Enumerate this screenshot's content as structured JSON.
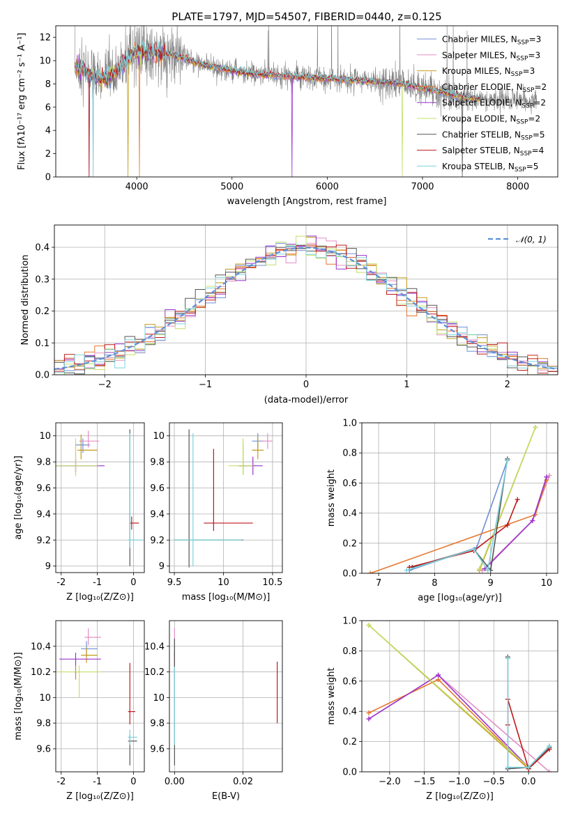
{
  "title": "PLATE=1797, MJD=54507, FIBERID=0440, z=0.125",
  "colors": {
    "Chabrier MILES": "#6f8fd6",
    "Salpeter MILES": "#e38fc4",
    "Kroupa MILES": "#c49a1a",
    "Chabrier ELODIE": "#e6772e",
    "Salpeter ELODIE": "#9933cc",
    "Kroupa ELODIE": "#c2e06a",
    "Chabrier STELIB": "#555555",
    "Salpeter STELIB": "#c01818",
    "Kroupa STELIB": "#7ed3dd",
    "normal": "#5b8fd8",
    "data": "#808080"
  },
  "chart_data": [
    {
      "id": "spectrum",
      "type": "line",
      "title": "PLATE=1797, MJD=54507, FIBERID=0440, z=0.125",
      "xlabel": "wavelength [Angstrom, rest frame]",
      "ylabel": "Flux [fλ10⁻¹⁷ erg cm⁻² s⁻¹ A⁻¹]",
      "xlim": [
        3150,
        8420
      ],
      "ylim": [
        0,
        13
      ],
      "xticks": [
        "4000",
        "5000",
        "6000",
        "7000",
        "8000"
      ],
      "yticks": [
        "0",
        "2",
        "4",
        "6",
        "8",
        "10",
        "12"
      ],
      "legend": [
        {
          "label": "Chabrier MILES, N",
          "sub": "SSP",
          "n": "=3"
        },
        {
          "label": "Salpeter MILES, N",
          "sub": "SSP",
          "n": "=3"
        },
        {
          "label": "Kroupa MILES, N",
          "sub": "SSP",
          "n": "=3"
        },
        {
          "label": "Chabrier ELODIE, N",
          "sub": "SSP",
          "n": "=2"
        },
        {
          "label": "Salpeter ELODIE, N",
          "sub": "SSP",
          "n": "=2"
        },
        {
          "label": "Kroupa ELODIE, N",
          "sub": "SSP",
          "n": "=2"
        },
        {
          "label": "Chabrier STELIB, N",
          "sub": "SSP",
          "n": "=5"
        },
        {
          "label": "Salpeter STELIB, N",
          "sub": "SSP",
          "n": "=4"
        },
        {
          "label": "Kroupa STELIB, N",
          "sub": "SSP",
          "n": "=5"
        }
      ],
      "legend_placement": "upper right",
      "continuum": [
        [
          3350,
          9.5
        ],
        [
          3450,
          9.2
        ],
        [
          3550,
          8.6
        ],
        [
          3650,
          8.4
        ],
        [
          3750,
          8.8
        ],
        [
          3850,
          9.6
        ],
        [
          3950,
          10.6
        ],
        [
          4050,
          10.8
        ],
        [
          4150,
          10.7
        ],
        [
          4300,
          10.6
        ],
        [
          4500,
          10.2
        ],
        [
          4700,
          9.6
        ],
        [
          4900,
          9.3
        ],
        [
          5100,
          9.0
        ],
        [
          5300,
          8.8
        ],
        [
          5500,
          8.7
        ],
        [
          5700,
          8.6
        ],
        [
          5900,
          8.5
        ],
        [
          6100,
          8.4
        ],
        [
          6300,
          8.3
        ],
        [
          6500,
          8.2
        ],
        [
          6700,
          8.1
        ],
        [
          6900,
          7.8
        ],
        [
          7100,
          7.5
        ],
        [
          7300,
          7.1
        ],
        [
          7500,
          6.8
        ],
        [
          7600,
          6.7
        ]
      ],
      "data_range": [
        3350,
        8200
      ],
      "deep_lines": [
        3500,
        3540,
        3910,
        4030,
        5630,
        6790,
        7420
      ]
    },
    {
      "id": "residuals",
      "type": "histogram",
      "xlabel": "(data-model)/error",
      "ylabel": "Normed distribution",
      "xlim": [
        -2.5,
        2.5
      ],
      "ylim": [
        0,
        0.47
      ],
      "xticks": [
        "−2",
        "−1",
        "0",
        "1",
        "2"
      ],
      "yticks": [
        "0.0",
        "0.1",
        "0.2",
        "0.3",
        "0.4"
      ],
      "bin_width": 0.1,
      "grid": true,
      "legend": "𝒩(0, 1)",
      "legend_placement": "upper right"
    },
    {
      "id": "age_vs_Z",
      "type": "errorbar",
      "xlabel": "Z [log₁₀(Z/Z⊙)]",
      "ylabel": "age  [log₁₀(age/yr)]",
      "xlim": [
        -2.15,
        0.3
      ],
      "ylim": [
        8.95,
        10.1
      ],
      "xticks": [
        -2,
        -1,
        0
      ],
      "yticks": [
        9.0,
        9.2,
        9.4,
        9.6,
        9.8,
        10.0
      ],
      "points": [
        {
          "m": "Chabrier MILES",
          "x": -1.4,
          "xe": [
            0.2,
            0.2
          ],
          "y": 9.93,
          "ye": [
            0.06,
            0.05
          ]
        },
        {
          "m": "Salpeter MILES",
          "x": -1.25,
          "xe": [
            0.25,
            0.3
          ],
          "y": 9.96,
          "ye": [
            0.05,
            0.08
          ]
        },
        {
          "m": "Kroupa MILES",
          "x": -1.45,
          "xe": [
            0.1,
            0.45
          ],
          "y": 9.89,
          "ye": [
            0.07,
            0.12
          ]
        },
        {
          "m": "Chabrier ELODIE",
          "x": -1.6,
          "xe": [
            0.05,
            0.05
          ],
          "y": 9.77,
          "ye": [
            0.05,
            0.17
          ]
        },
        {
          "m": "Salpeter ELODIE",
          "x": -1.6,
          "xe": [
            0.55,
            0.8
          ],
          "y": 9.77,
          "ye": [
            0.05,
            0.05
          ]
        },
        {
          "m": "Kroupa ELODIE",
          "x": -1.6,
          "xe": [
            0.55,
            0.6
          ],
          "y": 9.77,
          "ye": [
            0.08,
            0.21
          ]
        },
        {
          "m": "Chabrier STELIB",
          "x": -0.1,
          "xe": [
            0.02,
            0.02
          ],
          "y": 9.2,
          "ye": [
            0.2,
            0.85
          ]
        },
        {
          "m": "Salpeter STELIB",
          "x": -0.05,
          "xe": [
            0.05,
            0.2
          ],
          "y": 9.33,
          "ye": [
            0.05,
            0.05
          ]
        },
        {
          "m": "Kroupa STELIB",
          "x": -0.1,
          "xe": [
            0.05,
            0.35
          ],
          "y": 9.2,
          "ye": [
            0.06,
            0.82
          ]
        }
      ]
    },
    {
      "id": "age_vs_mass",
      "type": "errorbar",
      "xlabel": "mass [log₁₀(M/M⊙)]",
      "ylabel": "",
      "xlim": [
        9.45,
        10.6
      ],
      "ylim": [
        8.95,
        10.1
      ],
      "xticks": [
        9.5,
        10.0,
        10.5
      ],
      "yticks": [
        9.0,
        9.2,
        9.4,
        9.6,
        9.8,
        10.0
      ],
      "points": [
        {
          "m": "Chabrier MILES",
          "x": 10.35,
          "xe": [
            0.06,
            0.06
          ],
          "y": 9.96,
          "ye": [
            0.06,
            0.06
          ]
        },
        {
          "m": "Salpeter MILES",
          "x": 10.45,
          "xe": [
            0.06,
            0.05
          ],
          "y": 9.96,
          "ye": [
            0.06,
            0.06
          ]
        },
        {
          "m": "Kroupa MILES",
          "x": 10.35,
          "xe": [
            0.06,
            0.06
          ],
          "y": 9.89,
          "ye": [
            0.07,
            0.1
          ]
        },
        {
          "m": "Chabrier ELODIE",
          "x": 10.2,
          "xe": [
            0.03,
            0.03
          ],
          "y": 9.77,
          "ye": [
            0.07,
            0.17
          ]
        },
        {
          "m": "Salpeter ELODIE",
          "x": 10.3,
          "xe": [
            0.15,
            0.1
          ],
          "y": 9.77,
          "ye": [
            0.07,
            0.07
          ]
        },
        {
          "m": "Kroupa ELODIE",
          "x": 10.2,
          "xe": [
            0.15,
            0.1
          ],
          "y": 9.77,
          "ye": [
            0.07,
            0.21
          ]
        },
        {
          "m": "Chabrier STELIB",
          "x": 9.65,
          "xe": [
            0.15,
            0.55
          ],
          "y": 9.2,
          "ye": [
            0.21,
            0.85
          ]
        },
        {
          "m": "Salpeter STELIB",
          "x": 9.9,
          "xe": [
            0.1,
            0.4
          ],
          "y": 9.33,
          "ye": [
            0.06,
            0.57
          ]
        },
        {
          "m": "Kroupa STELIB",
          "x": 9.69,
          "xe": [
            0.2,
            0.5
          ],
          "y": 9.2,
          "ye": [
            0.2,
            0.82
          ]
        }
      ]
    },
    {
      "id": "weight_vs_age",
      "type": "line",
      "xlabel": "age  [log₁₀(age/yr)]",
      "ylabel": "mass weight",
      "xlim": [
        6.7,
        10.2
      ],
      "ylim": [
        0,
        1
      ],
      "xticks": [
        7,
        8,
        9,
        10
      ],
      "yticks": [
        "0.0",
        "0.2",
        "0.4",
        "0.6",
        "0.8",
        "1.0"
      ],
      "series": [
        {
          "m": "Chabrier MILES",
          "pts": [
            [
              7.55,
              0.02
            ],
            [
              8.75,
              0.17
            ],
            [
              9.3,
              0.75
            ]
          ]
        },
        {
          "m": "Salpeter MILES",
          "pts": [
            [
              8.85,
              0.02
            ],
            [
              9.75,
              0.35
            ],
            [
              10.05,
              0.65
            ]
          ]
        },
        {
          "m": "Kroupa MILES",
          "pts": [
            [
              8.8,
              0.02
            ],
            [
              9.8,
              0.97
            ]
          ]
        },
        {
          "m": "Chabrier ELODIE",
          "pts": [
            [
              6.85,
              0.0
            ],
            [
              9.8,
              0.39
            ],
            [
              10.0,
              0.62
            ]
          ]
        },
        {
          "m": "Salpeter ELODIE",
          "pts": [
            [
              8.9,
              0.03
            ],
            [
              9.75,
              0.35
            ],
            [
              10.0,
              0.64
            ]
          ]
        },
        {
          "m": "Kroupa ELODIE",
          "pts": [
            [
              8.8,
              0.03
            ],
            [
              9.8,
              0.97
            ]
          ]
        },
        {
          "m": "Chabrier STELIB",
          "pts": [
            [
              7.6,
              0.04
            ],
            [
              8.7,
              0.16
            ],
            [
              9.0,
              0.02
            ],
            [
              9.3,
              0.76
            ]
          ]
        },
        {
          "m": "Salpeter STELIB",
          "pts": [
            [
              7.55,
              0.04
            ],
            [
              8.7,
              0.15
            ],
            [
              9.3,
              0.32
            ],
            [
              9.48,
              0.49
            ]
          ]
        },
        {
          "m": "Kroupa STELIB",
          "pts": [
            [
              7.5,
              0.02
            ],
            [
              8.7,
              0.16
            ],
            [
              8.95,
              0.02
            ],
            [
              9.3,
              0.75
            ]
          ]
        }
      ]
    },
    {
      "id": "mass_vs_Z",
      "type": "errorbar",
      "xlabel": "Z [log₁₀(Z/Z⊙)]",
      "ylabel": "mass [log₁₀(M/M⊙)]",
      "xlim": [
        -2.15,
        0.3
      ],
      "ylim": [
        9.42,
        10.6
      ],
      "xticks": [
        -2,
        -1,
        0
      ],
      "yticks": [
        9.6,
        9.8,
        10.0,
        10.2,
        10.4
      ],
      "points": [
        {
          "m": "Chabrier MILES",
          "x": -1.3,
          "xe": [
            0.15,
            0.3
          ],
          "y": 10.38,
          "ye": [
            0.06,
            0.06
          ]
        },
        {
          "m": "Salpeter MILES",
          "x": -1.25,
          "xe": [
            0.1,
            0.35
          ],
          "y": 10.47,
          "ye": [
            0.06,
            0.07
          ]
        },
        {
          "m": "Kroupa MILES",
          "x": -1.3,
          "xe": [
            0.15,
            0.3
          ],
          "y": 10.33,
          "ye": [
            0.06,
            0.06
          ]
        },
        {
          "m": "Chabrier ELODIE",
          "x": -1.6,
          "xe": [
            0.05,
            0.05
          ],
          "y": 10.2,
          "ye": [
            0.06,
            0.05
          ]
        },
        {
          "m": "Salpeter ELODIE",
          "x": -1.6,
          "xe": [
            0.45,
            0.7
          ],
          "y": 10.3,
          "ye": [
            0.05,
            0.05
          ]
        },
        {
          "m": "Kroupa ELODIE",
          "x": -1.5,
          "xe": [
            0.6,
            0.6
          ],
          "y": 10.2,
          "ye": [
            0.2,
            0.05
          ]
        },
        {
          "m": "Chabrier STELIB",
          "x": -0.1,
          "xe": [
            0.05,
            0.2
          ],
          "y": 9.66,
          "ye": [
            0.19,
            0.05
          ]
        },
        {
          "m": "Salpeter STELIB",
          "x": -0.1,
          "xe": [
            0.05,
            0.15
          ],
          "y": 9.89,
          "ye": [
            0.1,
            0.38
          ]
        },
        {
          "m": "Kroupa STELIB",
          "x": -0.1,
          "xe": [
            0.05,
            0.2
          ],
          "y": 9.69,
          "ye": [
            0.06,
            0.06
          ]
        }
      ]
    },
    {
      "id": "mass_vs_ebv",
      "type": "errorbar",
      "xlabel": "E(B-V)",
      "ylabel": "",
      "xlim": [
        -0.0015,
        0.0315
      ],
      "ylim": [
        9.42,
        10.6
      ],
      "xticks": [
        "0.00",
        "0.02"
      ],
      "yticks": [
        9.6,
        9.8,
        10.0,
        10.2,
        10.4
      ],
      "points": [
        {
          "m": "Chabrier MILES",
          "x": 0.0,
          "y": 10.38,
          "ye": [
            0.06,
            0.06
          ]
        },
        {
          "m": "Salpeter MILES",
          "x": 0.0,
          "y": 10.47,
          "ye": [
            0.06,
            0.07
          ]
        },
        {
          "m": "Kroupa MILES",
          "x": 0.0,
          "y": 10.33,
          "ye": [
            0.06,
            0.06
          ]
        },
        {
          "m": "Chabrier ELODIE",
          "x": 0.0,
          "y": 10.2,
          "ye": [
            0.06,
            0.05
          ]
        },
        {
          "m": "Salpeter ELODIE",
          "x": 0.0,
          "y": 10.3,
          "ye": [
            0.05,
            0.05
          ]
        },
        {
          "m": "Kroupa ELODIE",
          "x": 0.0,
          "y": 10.2,
          "ye": [
            0.2,
            0.05
          ]
        },
        {
          "m": "Chabrier STELIB",
          "x": 0.0,
          "y": 9.66,
          "ye": [
            0.19,
            0.8
          ]
        },
        {
          "m": "Salpeter STELIB",
          "x": 0.03,
          "y": 10.05,
          "ye": [
            0.25,
            0.23
          ]
        },
        {
          "m": "Kroupa STELIB",
          "x": 0.0,
          "y": 9.69,
          "ye": [
            0.06,
            0.55
          ]
        }
      ]
    },
    {
      "id": "weight_vs_Z",
      "type": "line",
      "xlabel": "Z [log₁₀(Z/Z⊙)]",
      "ylabel": "mass weight",
      "xlim": [
        -2.4,
        0.42
      ],
      "ylim": [
        0,
        1
      ],
      "xticks": [
        "−2.0",
        "−1.5",
        "−1.0",
        "−0.5",
        "0.0"
      ],
      "xtickvals": [
        -2.0,
        -1.5,
        -1.0,
        -0.5,
        0.0
      ],
      "yticks": [
        "0.0",
        "0.2",
        "0.4",
        "0.6",
        "0.8",
        "1.0"
      ],
      "series": [
        {
          "m": "Chabrier MILES",
          "pts": [
            [
              -0.3,
              0.75
            ],
            [
              -0.3,
              0.02
            ],
            [
              0.0,
              0.03
            ],
            [
              0.3,
              0.17
            ]
          ]
        },
        {
          "m": "Salpeter MILES",
          "pts": [
            [
              -2.3,
              0.35
            ],
            [
              -1.3,
              0.64
            ],
            [
              0.3,
              0.0
            ]
          ]
        },
        {
          "m": "Kroupa MILES",
          "pts": [
            [
              -2.3,
              0.97
            ],
            [
              0.0,
              0.02
            ]
          ]
        },
        {
          "m": "Chabrier ELODIE",
          "pts": [
            [
              -2.3,
              0.39
            ],
            [
              -1.3,
              0.61
            ],
            [
              0.0,
              0.02
            ]
          ]
        },
        {
          "m": "Salpeter ELODIE",
          "pts": [
            [
              -2.3,
              0.35
            ],
            [
              -1.3,
              0.64
            ],
            [
              0.0,
              0.03
            ]
          ]
        },
        {
          "m": "Kroupa ELODIE",
          "pts": [
            [
              -2.3,
              0.97
            ],
            [
              0.0,
              0.03
            ]
          ]
        },
        {
          "m": "Chabrier STELIB",
          "pts": [
            [
              -0.3,
              0.76
            ],
            [
              -0.3,
              0.02
            ],
            [
              0.0,
              0.03
            ],
            [
              0.3,
              0.16
            ]
          ]
        },
        {
          "m": "Salpeter STELIB",
          "pts": [
            [
              -0.3,
              0.31
            ],
            [
              -0.3,
              0.48
            ],
            [
              0.0,
              0.02
            ],
            [
              0.3,
              0.15
            ]
          ]
        },
        {
          "m": "Kroupa STELIB",
          "pts": [
            [
              -0.3,
              0.75
            ],
            [
              -0.3,
              0.03
            ],
            [
              0.0,
              0.03
            ],
            [
              0.3,
              0.17
            ]
          ]
        }
      ]
    }
  ]
}
